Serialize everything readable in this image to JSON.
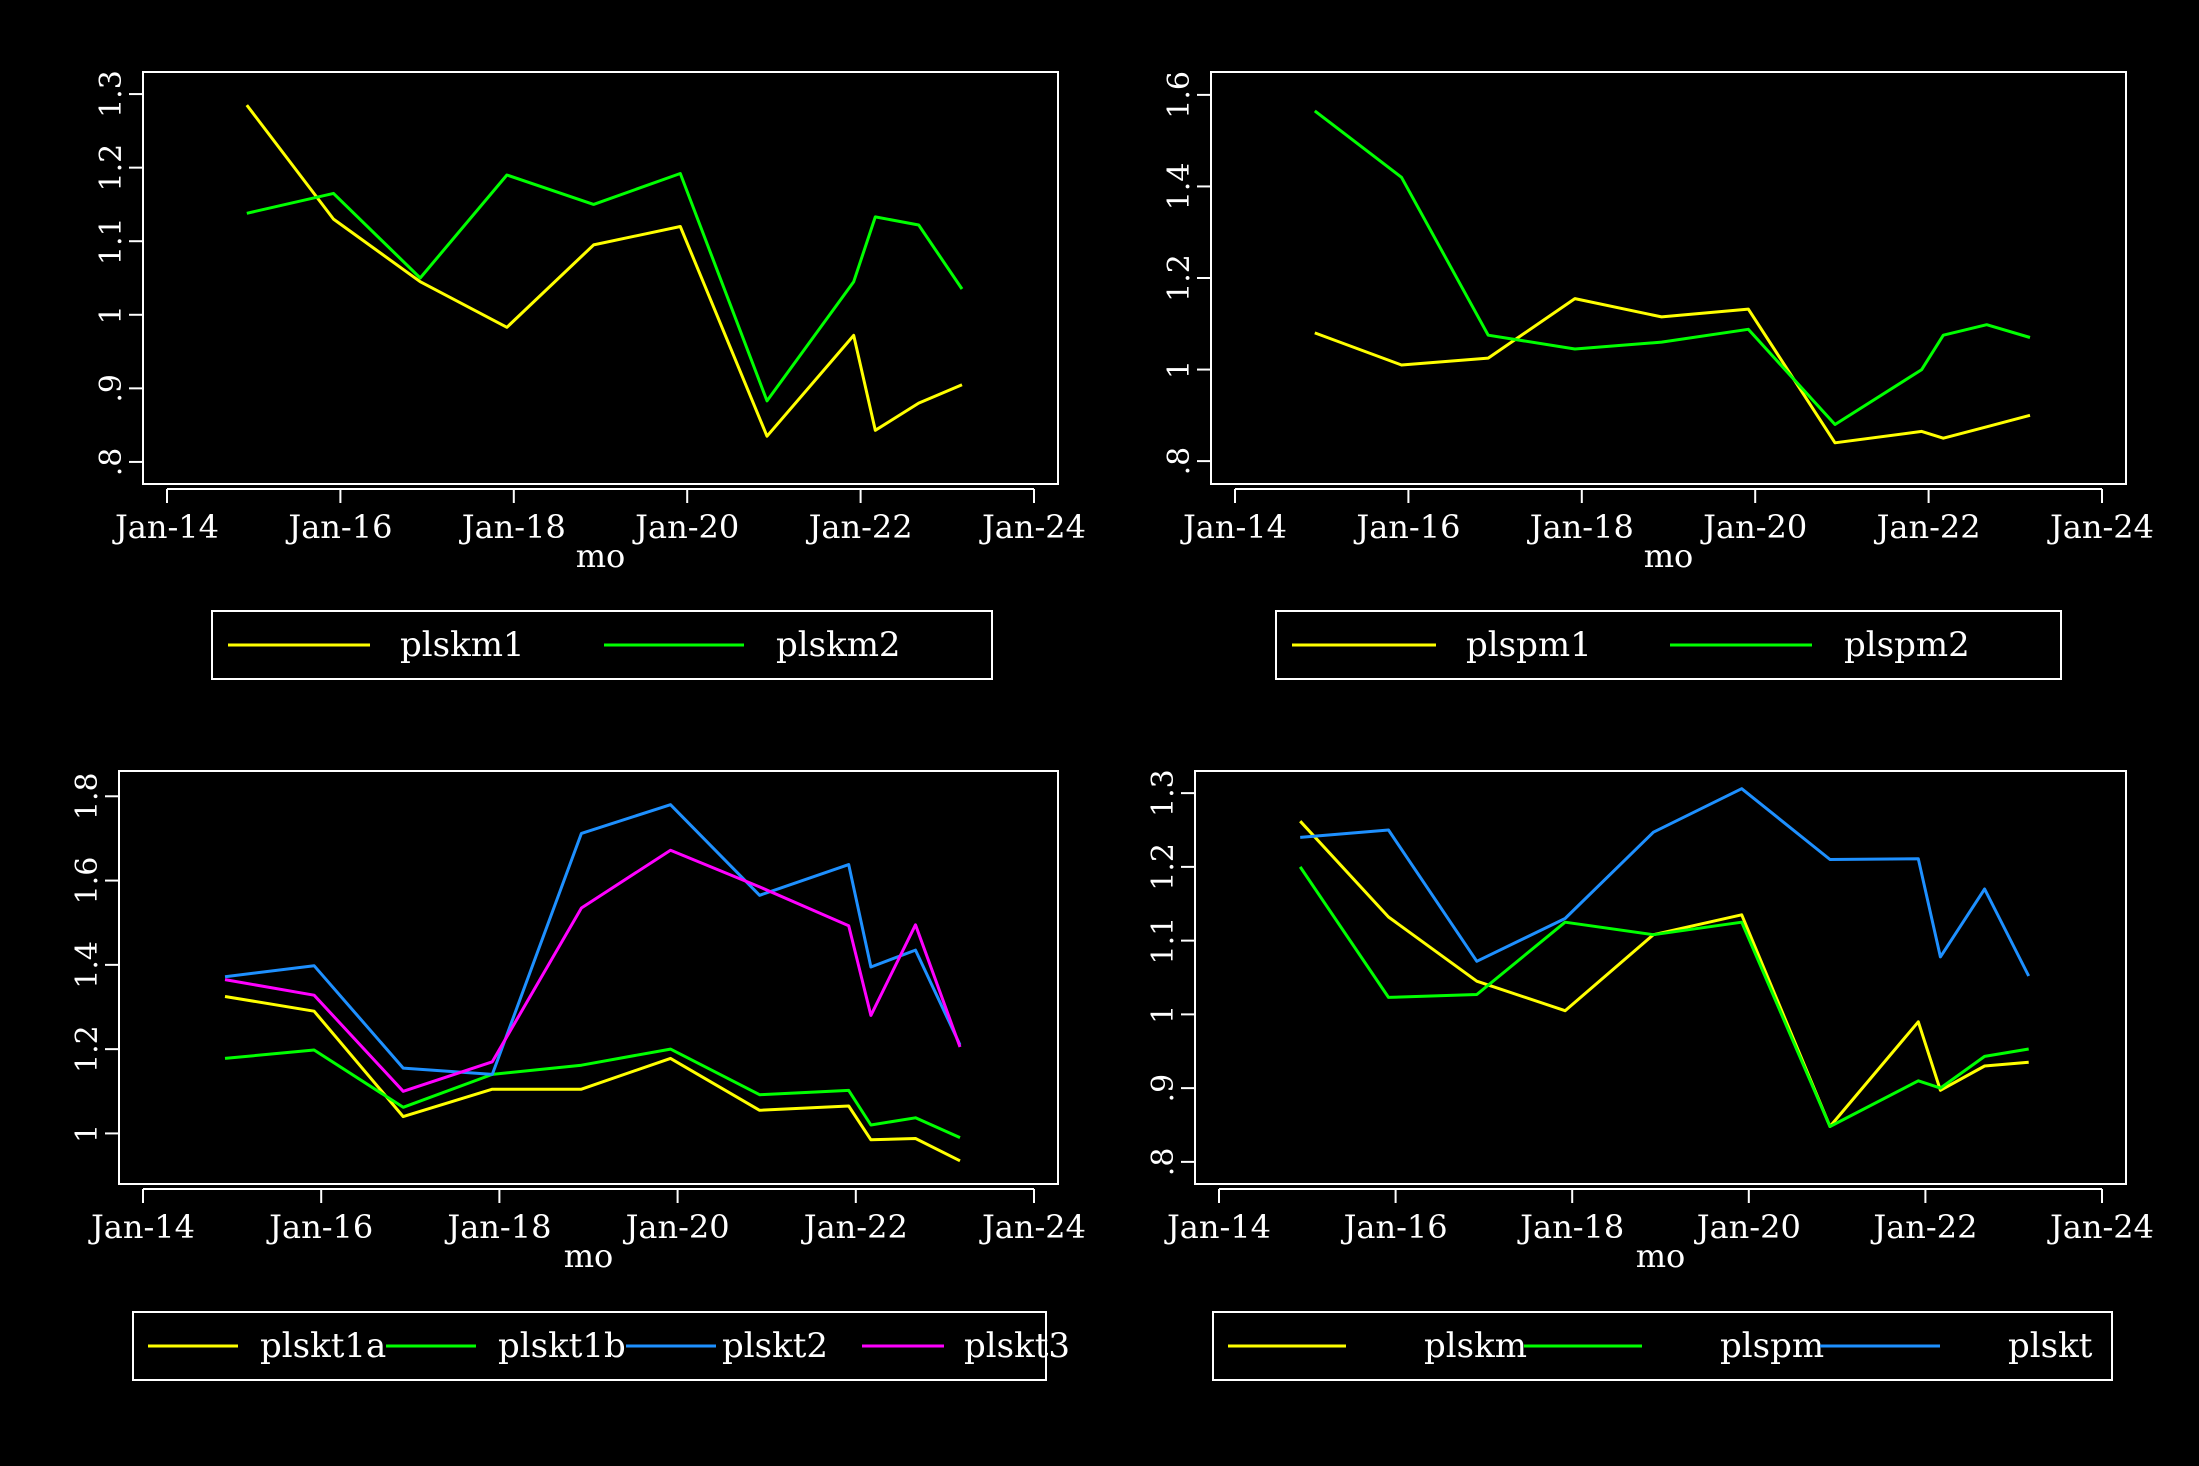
{
  "chart_data": [
    {
      "type": "line",
      "xlabel": "mo",
      "ylabel": "",
      "xticks": [
        "Jan-14",
        "Jan-16",
        "Jan-18",
        "Jan-20",
        "Jan-22",
        "Jan-24"
      ],
      "xlim": [
        2014,
        2024
      ],
      "yticks": [
        0.8,
        0.9,
        1.0,
        1.1,
        1.2,
        1.3
      ],
      "ytick_labels": [
        ".8",
        ".9",
        "1",
        "1.1",
        "1.2",
        "1.3"
      ],
      "ylim": [
        0.77,
        1.33
      ],
      "legend_position": "bottom",
      "series": [
        {
          "name": "plskm1",
          "color": "#ffff00",
          "x": [
            2014.92,
            2015.92,
            2016.92,
            2017.92,
            2018.92,
            2019.92,
            2020.92,
            2021.92,
            2022.17,
            2022.67,
            2023.17
          ],
          "y": [
            1.285,
            1.13,
            1.045,
            0.983,
            1.095,
            1.12,
            0.835,
            0.972,
            0.843,
            0.88,
            0.905
          ]
        },
        {
          "name": "plskm2",
          "color": "#00ff00",
          "x": [
            2014.92,
            2015.92,
            2016.92,
            2017.92,
            2018.92,
            2019.92,
            2020.92,
            2021.92,
            2022.17,
            2022.67,
            2023.17
          ],
          "y": [
            1.138,
            1.165,
            1.05,
            1.19,
            1.15,
            1.192,
            0.883,
            1.045,
            1.133,
            1.122,
            1.035
          ]
        }
      ]
    },
    {
      "type": "line",
      "xlabel": "mo",
      "ylabel": "",
      "xticks": [
        "Jan-14",
        "Jan-16",
        "Jan-18",
        "Jan-20",
        "Jan-22",
        "Jan-24"
      ],
      "xlim": [
        2014,
        2024
      ],
      "yticks": [
        0.8,
        1.0,
        1.2,
        1.4,
        1.6
      ],
      "ytick_labels": [
        ".8",
        "1",
        "1.2",
        "1.4",
        "1.6"
      ],
      "ylim": [
        0.75,
        1.65
      ],
      "legend_position": "bottom",
      "series": [
        {
          "name": "plspm1",
          "color": "#ffff00",
          "x": [
            2014.92,
            2015.92,
            2016.92,
            2017.92,
            2018.92,
            2019.92,
            2020.92,
            2021.92,
            2022.17,
            2022.67,
            2023.17
          ],
          "y": [
            1.08,
            1.01,
            1.025,
            1.155,
            1.115,
            1.132,
            0.84,
            0.865,
            0.85,
            0.875,
            0.9
          ]
        },
        {
          "name": "plspm2",
          "color": "#00ff00",
          "x": [
            2014.92,
            2015.92,
            2016.92,
            2017.92,
            2018.92,
            2019.92,
            2020.92,
            2021.92,
            2022.17,
            2022.67,
            2023.17
          ],
          "y": [
            1.565,
            1.42,
            1.075,
            1.045,
            1.06,
            1.088,
            0.88,
            1.0,
            1.075,
            1.098,
            1.07
          ]
        }
      ]
    },
    {
      "type": "line",
      "xlabel": "mo",
      "ylabel": "",
      "xticks": [
        "Jan-14",
        "Jan-16",
        "Jan-18",
        "Jan-20",
        "Jan-22",
        "Jan-24"
      ],
      "xlim": [
        2014,
        2024
      ],
      "yticks": [
        1.0,
        1.2,
        1.4,
        1.6,
        1.8
      ],
      "ytick_labels": [
        "1",
        "1.2",
        "1.4",
        "1.6",
        "1.8"
      ],
      "ylim": [
        0.88,
        1.86
      ],
      "legend_position": "bottom",
      "series": [
        {
          "name": "plskt1a",
          "color": "#ffff00",
          "x": [
            2014.92,
            2015.92,
            2016.92,
            2017.92,
            2018.92,
            2019.92,
            2020.92,
            2021.92,
            2022.17,
            2022.67,
            2023.17
          ],
          "y": [
            1.325,
            1.29,
            1.04,
            1.105,
            1.105,
            1.178,
            1.055,
            1.065,
            0.985,
            0.988,
            0.935
          ]
        },
        {
          "name": "plskt1b",
          "color": "#00ff00",
          "x": [
            2014.92,
            2015.92,
            2016.92,
            2017.92,
            2018.92,
            2019.92,
            2020.92,
            2021.92,
            2022.17,
            2022.67,
            2023.17
          ],
          "y": [
            1.178,
            1.198,
            1.062,
            1.14,
            1.162,
            1.2,
            1.092,
            1.102,
            1.02,
            1.037,
            0.99
          ]
        },
        {
          "name": "plskt2",
          "color": "#1e90ff",
          "x": [
            2014.92,
            2015.92,
            2016.92,
            2017.92,
            2018.92,
            2019.92,
            2020.92,
            2021.92,
            2022.17,
            2022.67,
            2023.17
          ],
          "y": [
            1.372,
            1.398,
            1.155,
            1.14,
            1.712,
            1.78,
            1.565,
            1.638,
            1.395,
            1.435,
            1.21
          ]
        },
        {
          "name": "plskt3",
          "color": "#ff00ff",
          "x": [
            2014.92,
            2015.92,
            2016.92,
            2017.92,
            2018.92,
            2019.92,
            2020.92,
            2021.92,
            2022.17,
            2022.67,
            2023.17
          ],
          "y": [
            1.365,
            1.328,
            1.1,
            1.17,
            1.535,
            1.672,
            1.585,
            1.493,
            1.28,
            1.495,
            1.205
          ]
        }
      ]
    },
    {
      "type": "line",
      "xlabel": "mo",
      "ylabel": "",
      "xticks": [
        "Jan-14",
        "Jan-16",
        "Jan-18",
        "Jan-20",
        "Jan-22",
        "Jan-24"
      ],
      "xlim": [
        2014,
        2024
      ],
      "yticks": [
        0.8,
        0.9,
        1.0,
        1.1,
        1.2,
        1.3
      ],
      "ytick_labels": [
        ".8",
        ".9",
        "1",
        "1.1",
        "1.2",
        "1.3"
      ],
      "ylim": [
        0.77,
        1.33
      ],
      "legend_position": "bottom",
      "series": [
        {
          "name": "plskm",
          "color": "#ffff00",
          "x": [
            2014.92,
            2015.92,
            2016.92,
            2017.92,
            2018.92,
            2019.92,
            2020.92,
            2021.92,
            2022.17,
            2022.67,
            2023.17
          ],
          "y": [
            1.262,
            1.132,
            1.045,
            1.005,
            1.108,
            1.135,
            0.848,
            0.99,
            0.897,
            0.93,
            0.935
          ]
        },
        {
          "name": "plspm",
          "color": "#00ff00",
          "x": [
            2014.92,
            2015.92,
            2016.92,
            2017.92,
            2018.92,
            2019.92,
            2020.92,
            2021.92,
            2022.17,
            2022.67,
            2023.17
          ],
          "y": [
            1.2,
            1.023,
            1.027,
            1.125,
            1.108,
            1.125,
            0.848,
            0.91,
            0.9,
            0.943,
            0.953
          ]
        },
        {
          "name": "plskt",
          "color": "#1e90ff",
          "x": [
            2014.92,
            2015.92,
            2016.92,
            2017.92,
            2018.92,
            2019.92,
            2020.92,
            2021.92,
            2022.17,
            2022.67,
            2023.17
          ],
          "y": [
            1.24,
            1.25,
            1.072,
            1.13,
            1.247,
            1.306,
            1.21,
            1.211,
            1.078,
            1.17,
            1.052
          ]
        }
      ]
    }
  ]
}
